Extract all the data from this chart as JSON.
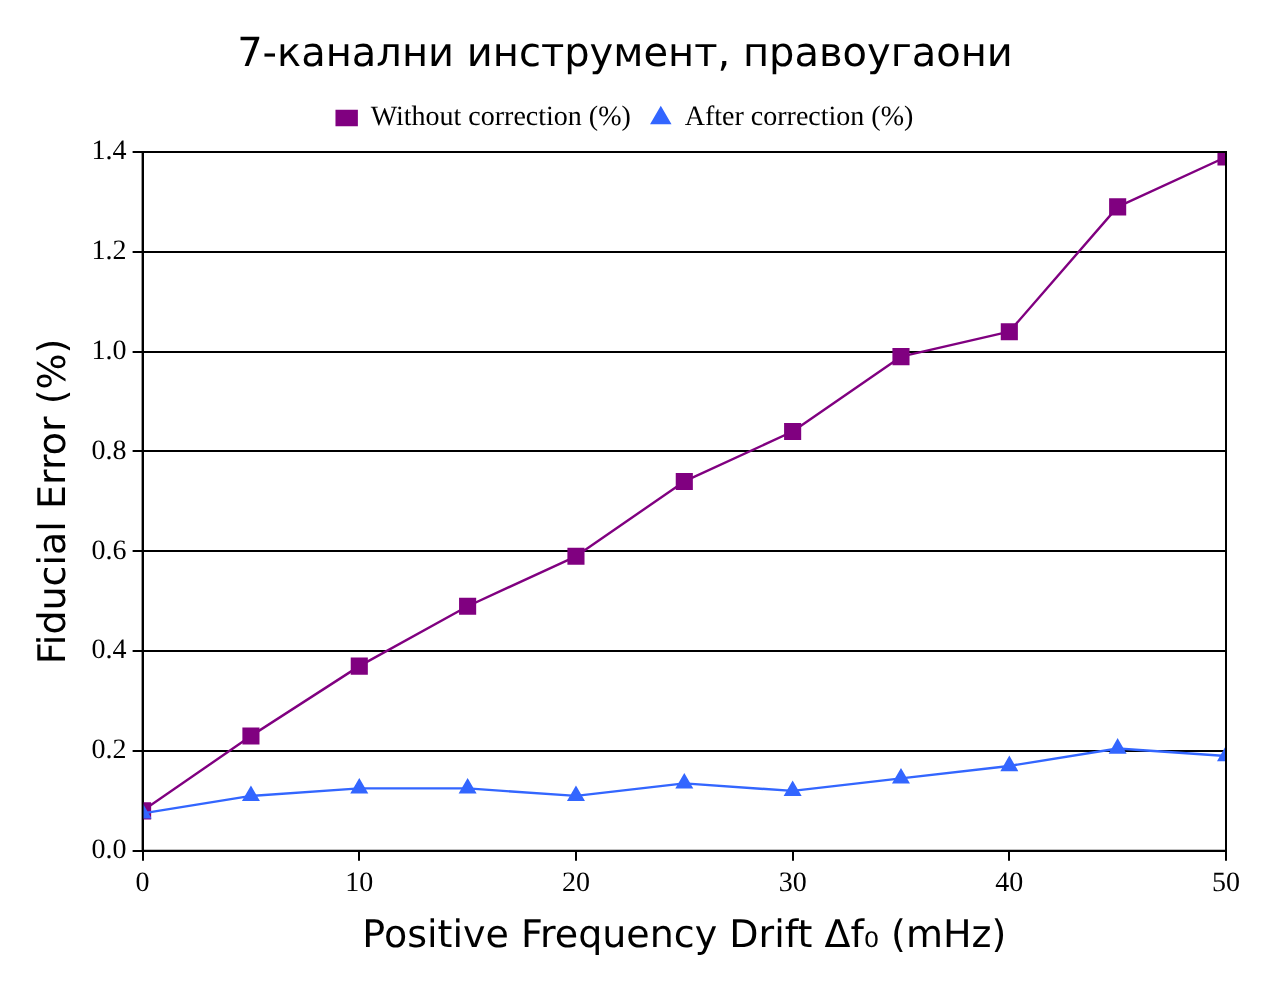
{
  "chart_data": {
    "type": "line",
    "title": "7-канални инструмент, правоугаони",
    "xlabel": "Positive Frequency Drift Δf₀ (mHz)",
    "ylabel": "Fiducial Error (%)",
    "x": [
      0,
      5,
      10,
      15,
      20,
      25,
      30,
      35,
      40,
      45,
      50
    ],
    "series": [
      {
        "name": "Without correction (%)",
        "color": "#800080",
        "marker": "square",
        "values": [
          0.08,
          0.23,
          0.37,
          0.49,
          0.59,
          0.74,
          0.84,
          0.99,
          1.04,
          1.29,
          1.39
        ]
      },
      {
        "name": "After correction (%)",
        "color": "#3366ff",
        "marker": "triangle",
        "values": [
          0.075,
          0.11,
          0.125,
          0.125,
          0.11,
          0.135,
          0.12,
          0.145,
          0.17,
          0.205,
          0.19
        ]
      }
    ],
    "xlim": [
      0,
      50
    ],
    "xticks": [
      0,
      10,
      20,
      30,
      40,
      50
    ],
    "ylim": [
      0,
      1.4
    ],
    "yticks": [
      {
        "value": 0,
        "label": "0.0"
      },
      {
        "value": 0.2,
        "label": "0.2"
      },
      {
        "value": 0.4,
        "label": "0.4"
      },
      {
        "value": 0.6,
        "label": "0.6"
      },
      {
        "value": 0.8,
        "label": "0.8"
      },
      {
        "value": 1,
        "label": "1.0"
      },
      {
        "value": 1.2,
        "label": "1.2"
      },
      {
        "value": 1.4,
        "label": "1.4"
      }
    ],
    "grid": "y",
    "legend": "top",
    "line_style": "solid"
  }
}
